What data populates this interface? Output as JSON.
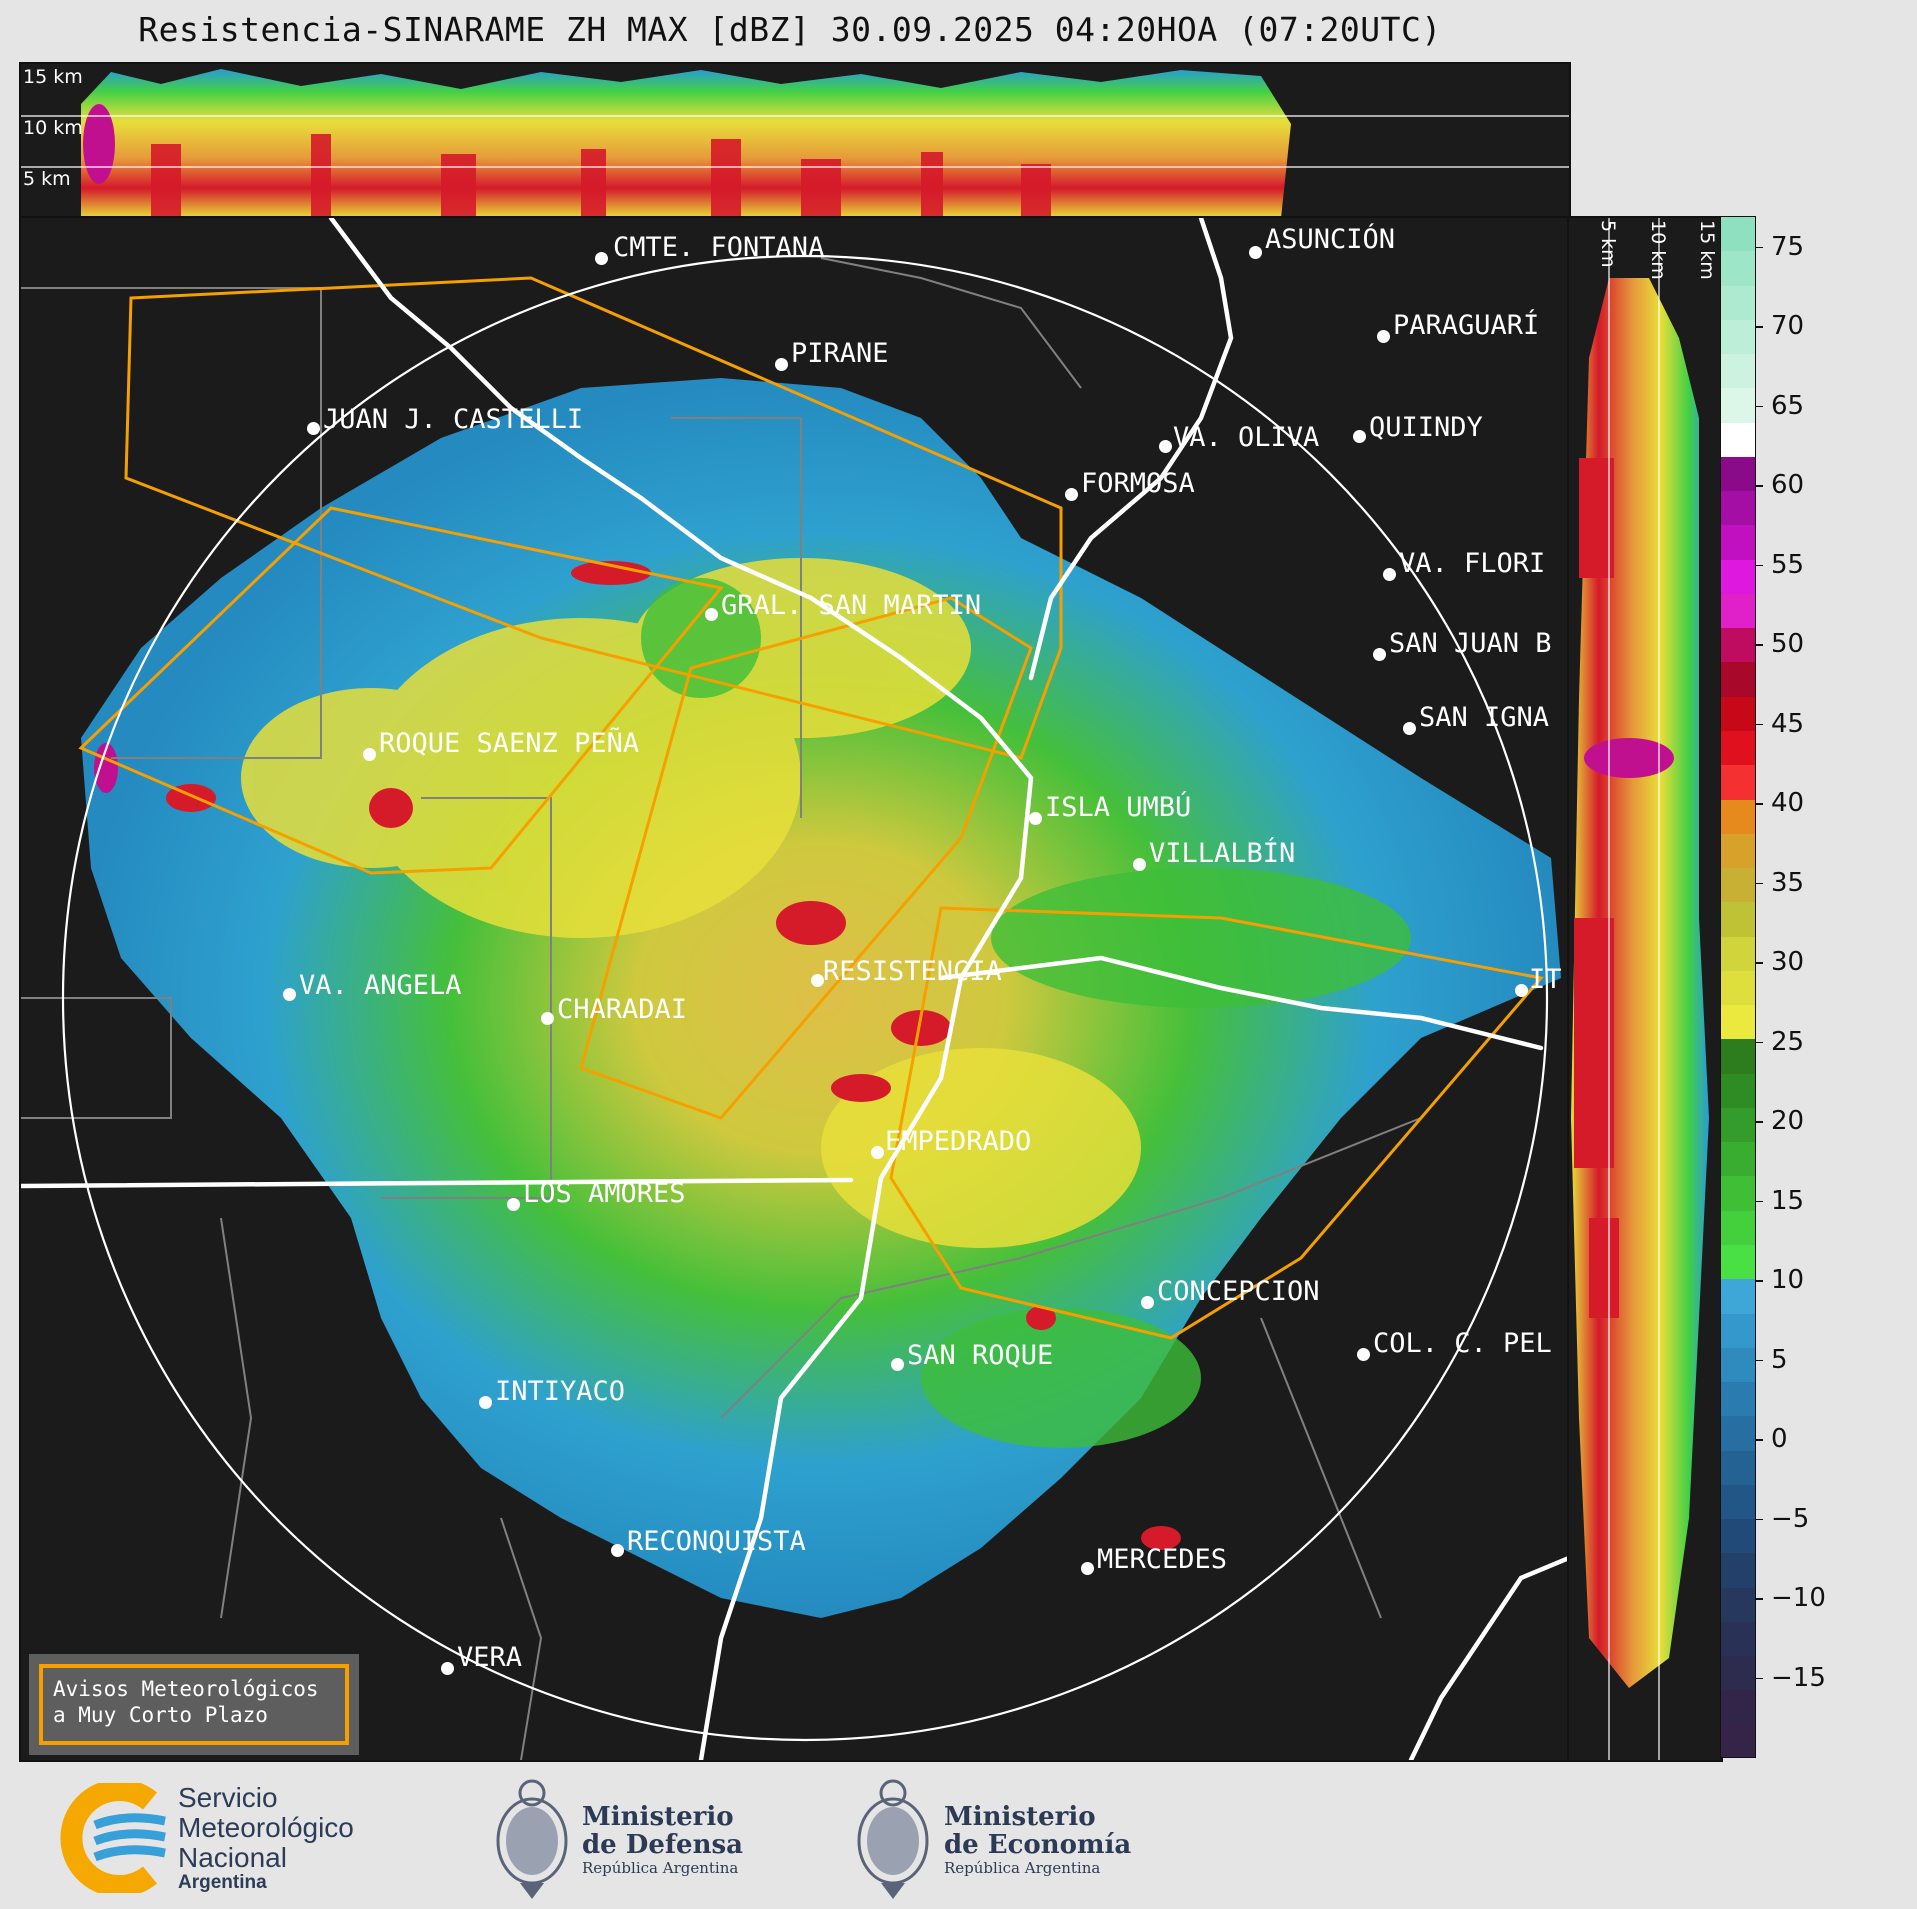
{
  "title": "Resistencia-SINARAME ZH MAX [dBZ] 30.09.2025 04:20HOA (07:20UTC)",
  "top_panel": {
    "height_labels": [
      "15 km",
      "10 km",
      "5 km"
    ]
  },
  "right_panel": {
    "height_labels": [
      "5 km",
      "10 km",
      "15 km"
    ]
  },
  "colorbar": {
    "unit": "dBZ",
    "ticks": [
      "75",
      "70",
      "65",
      "60",
      "55",
      "50",
      "45",
      "40",
      "35",
      "30",
      "25",
      "20",
      "15",
      "10",
      "5",
      "0",
      "−5",
      "−10",
      "−15"
    ],
    "min": -20,
    "max": 77
  },
  "cities": [
    {
      "name": "CMTE. FONTANA"
    },
    {
      "name": "ASUNCIÓN"
    },
    {
      "name": "PARAGUARÍ"
    },
    {
      "name": "PIRANE"
    },
    {
      "name": "JUAN J. CASTELLI"
    },
    {
      "name": "VA. OLIVA"
    },
    {
      "name": "QUIINDY"
    },
    {
      "name": "FORMOSA"
    },
    {
      "name": "VA. FLORI"
    },
    {
      "name": "GRAL. SAN MARTIN"
    },
    {
      "name": "SAN JUAN B"
    },
    {
      "name": "ROQUE SAENZ PEÑA"
    },
    {
      "name": "SAN IGNA"
    },
    {
      "name": "ISLA UMBÚ"
    },
    {
      "name": "VILLALBÍN"
    },
    {
      "name": "RESISTENCIA"
    },
    {
      "name": "VA. ANGELA"
    },
    {
      "name": "CHARADAI"
    },
    {
      "name": "IT"
    },
    {
      "name": "EMPEDRADO"
    },
    {
      "name": "LOS AMORES"
    },
    {
      "name": "CONCEPCION"
    },
    {
      "name": "COL. C. PEL"
    },
    {
      "name": "SAN ROQUE"
    },
    {
      "name": "INTIYACO"
    },
    {
      "name": "RECONQUISTA"
    },
    {
      "name": "MERCEDES"
    },
    {
      "name": "VERA"
    }
  ],
  "legend": {
    "line1": "Avisos Meteorológicos",
    "line2": "a Muy Corto Plazo"
  },
  "footer": {
    "smn": {
      "line1": "Servicio",
      "line2": "Meteorológico",
      "line3": "Nacional",
      "line4": "Argentina"
    },
    "defensa": {
      "line1": "Ministerio",
      "line2": "de Defensa",
      "line3": "República Argentina"
    },
    "economia": {
      "line1": "Ministerio",
      "line2": "de Economía",
      "line3": "República Argentina"
    }
  },
  "colors": {
    "background": "#1b1b1b",
    "warning_polygon": "#f5a000",
    "rivers": "#ffffff",
    "boundaries": "#808080"
  }
}
